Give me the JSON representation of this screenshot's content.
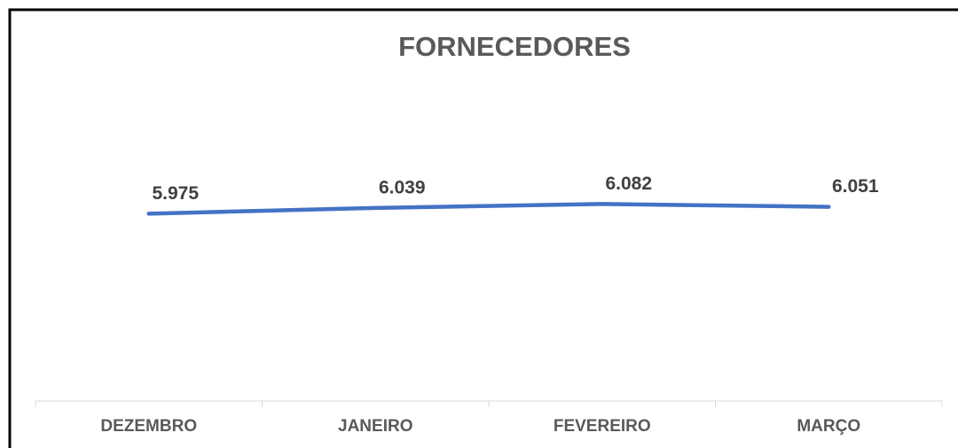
{
  "chart_data": {
    "type": "line",
    "title": "FORNECEDORES",
    "categories": [
      "DEZEMBRO",
      "JANEIRO",
      "FEVEREIRO",
      "MARÇO"
    ],
    "series": [
      {
        "color": "#4472c4",
        "values": [
          5975,
          6039,
          6082,
          6051
        ],
        "value_labels": [
          "5.975",
          "6.039",
          "6.082",
          "6.051"
        ]
      }
    ],
    "ylim": [
      3900,
      6400
    ]
  }
}
